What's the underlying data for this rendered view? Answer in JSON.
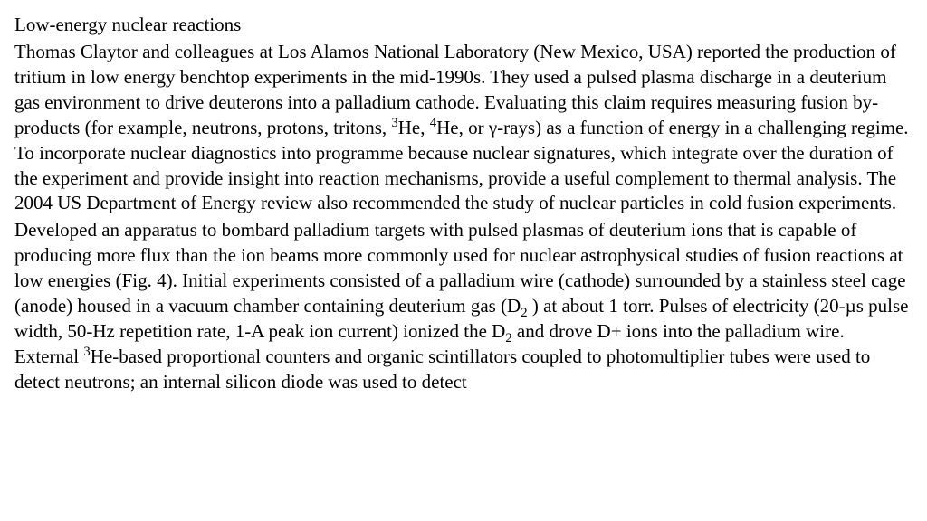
{
  "heading": "Low-energy nuclear reactions",
  "p1_a": "Thomas Claytor and colleagues at Los Alamos National Laboratory (New Mexico, USA) reported the production of tritium in low energy benchtop experiments in the mid-1990s. They used a pulsed plasma discharge in a deuterium gas environment to drive deuterons into a palladium cathode. Evaluating this claim requires measuring fusion by-products (for example, neutrons, protons, tritons, ",
  "sup3a": "3",
  "he_a": "He, ",
  "sup4": "4",
  "p1_b": "He, or γ-rays) as a function of energy in a challenging regime. To incorporate nuclear diagnostics into programme because nuclear signatures, which integrate over the duration of the experiment and provide insight into reaction mechanisms, provide a useful complement to thermal analysis. The 2004 US Department of Energy review also recommended the study of nuclear particles in cold fusion experiments.",
  "p2_a": "Developed an apparatus to bombard palladium targets with pulsed plasmas of deuterium ions that is capable of producing more flux than the ion beams more commonly used for nuclear astrophysical studies of fusion reactions at low energies (Fig. 4). Initial experiments consisted of a palladium wire (cathode) surrounded by a stainless steel cage (anode) housed in a vacuum chamber containing deuterium gas (D",
  "sub2a": "2",
  "p2_b": " ) at about 1 torr. Pulses of electricity (20-µs pulse width, 50-Hz repetition rate, 1-A peak ion current) ionized the D",
  "sub2b": "2",
  "p2_c": " and drove D+ ions into the palladium wire. External ",
  "sup3b": "3",
  "p2_d": "He-based proportional counters and organic scintillators coupled to photomultiplier tubes were used to detect neutrons; an internal silicon diode was used to detect"
}
